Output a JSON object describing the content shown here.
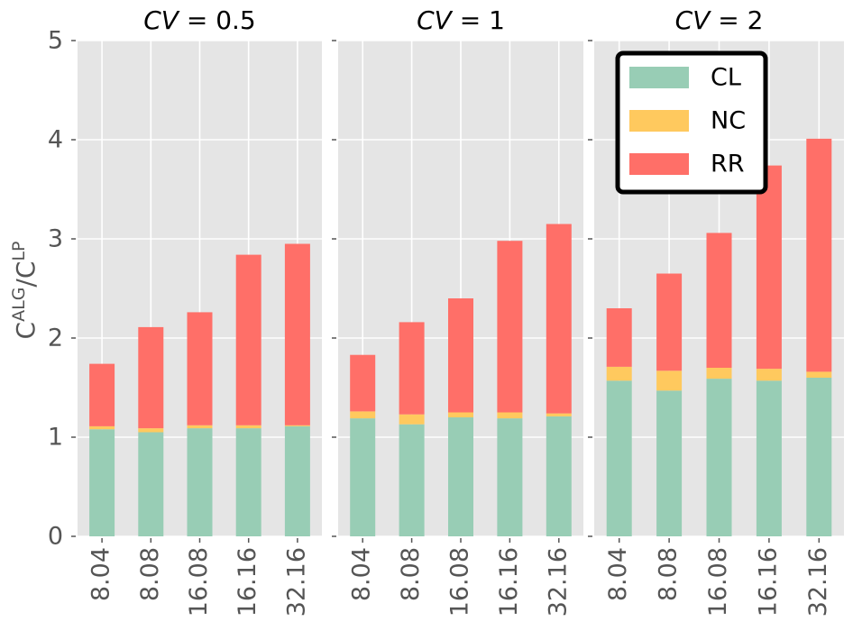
{
  "chart_data": {
    "type": "bar",
    "stacked": true,
    "ylabel": "C^ALG/C^LP",
    "ylabel_main": "C",
    "ylabel_sup1": "ALG",
    "ylabel_slash": "/C",
    "ylabel_sup2": "LP",
    "ylim": [
      0,
      5
    ],
    "yticks": [
      "0",
      "1",
      "2",
      "3",
      "4",
      "5"
    ],
    "grid": true,
    "legend_placement": "top-right of third panel",
    "series_names": [
      "CL",
      "NC",
      "RR"
    ],
    "colors": {
      "CL": "#98cdb5",
      "NC": "#ffc95e",
      "RR": "#ff6f68",
      "background": "#e5e5e5",
      "grid": "#ffffff"
    },
    "categories": [
      "8.04",
      "8.08",
      "16.08",
      "16.16",
      "32.16"
    ],
    "panels": [
      {
        "title": "CV = 0.5",
        "title_cv": "CV",
        "title_eq": " = 0.5",
        "series": [
          {
            "name": "CL",
            "values": [
              1.08,
              1.05,
              1.09,
              1.09,
              1.11
            ]
          },
          {
            "name": "NC",
            "values": [
              0.03,
              0.04,
              0.03,
              0.03,
              0.01
            ]
          },
          {
            "name": "RR",
            "values": [
              0.63,
              1.02,
              1.14,
              1.72,
              1.83
            ]
          }
        ]
      },
      {
        "title": "CV = 1",
        "title_cv": "CV",
        "title_eq": " = 1",
        "series": [
          {
            "name": "CL",
            "values": [
              1.19,
              1.13,
              1.2,
              1.19,
              1.21
            ]
          },
          {
            "name": "NC",
            "values": [
              0.07,
              0.1,
              0.05,
              0.06,
              0.03
            ]
          },
          {
            "name": "RR",
            "values": [
              0.57,
              0.93,
              1.15,
              1.73,
              1.91
            ]
          }
        ]
      },
      {
        "title": "CV = 2",
        "title_cv": "CV",
        "title_eq": " = 2",
        "series": [
          {
            "name": "CL",
            "values": [
              1.57,
              1.47,
              1.59,
              1.57,
              1.6
            ]
          },
          {
            "name": "NC",
            "values": [
              0.14,
              0.2,
              0.11,
              0.12,
              0.06
            ]
          },
          {
            "name": "RR",
            "values": [
              0.59,
              0.98,
              1.36,
              2.05,
              2.35
            ]
          }
        ]
      }
    ]
  }
}
